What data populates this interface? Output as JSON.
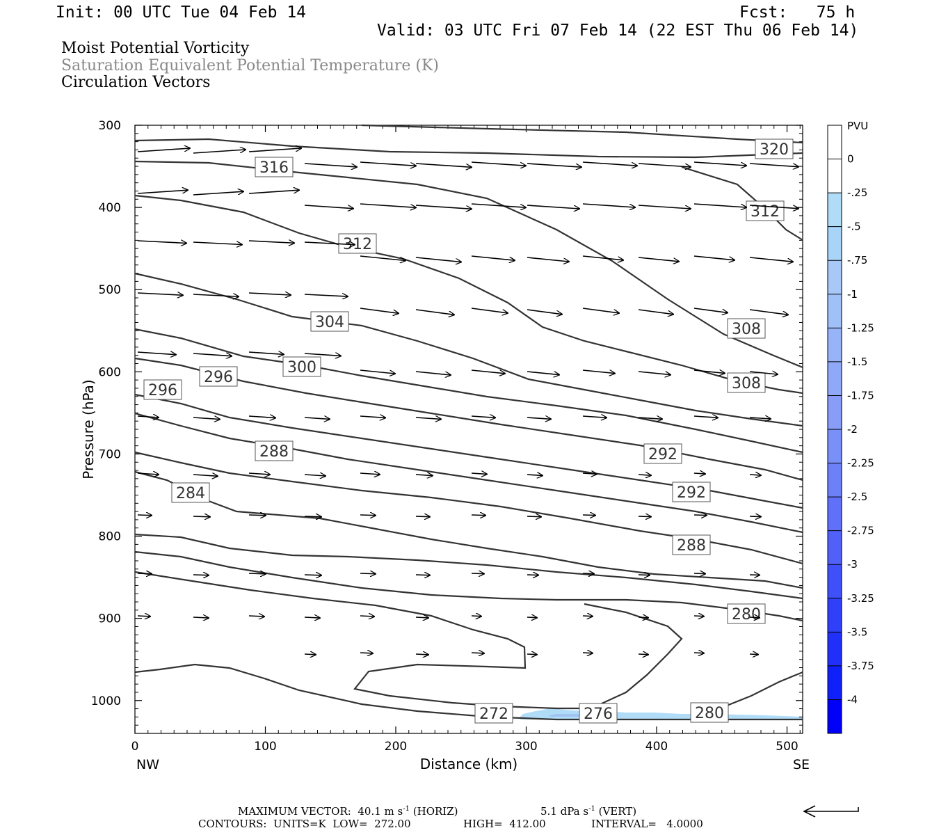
{
  "header": {
    "init": "Init: 00 UTC Tue 04 Feb 14",
    "fcst": "Fcst:   75 h",
    "valid": "Valid: 03 UTC Fri 07 Feb 14 (22 EST Thu 06 Feb 14)",
    "field1": "Moist Potential Vorticity",
    "field2": "Saturation Equivalent Potential Temperature (K)",
    "field3": "Circulation Vectors"
  },
  "colors": {
    "field2_text": "#888888",
    "contour": "#333333",
    "pv_fill": "#b0dcf8"
  },
  "chart_data": {
    "type": "cross-section contour",
    "xlabel": "Distance (km)",
    "ylabel": "Pressure (hPa)",
    "xlim": [
      0,
      512
    ],
    "ylim": [
      1040,
      300
    ],
    "x_ticks": [
      "0",
      "100",
      "200",
      "300",
      "400",
      "500"
    ],
    "y_ticks": [
      "300",
      "400",
      "500",
      "600",
      "700",
      "800",
      "900",
      "1000"
    ],
    "x_end_labels": {
      "left": "NW",
      "right": "SE"
    },
    "contour_units": "K",
    "contour_labels": [
      "320",
      "316",
      "312",
      "312",
      "308",
      "308",
      "304",
      "300",
      "296",
      "296",
      "292",
      "292",
      "288",
      "288",
      "284",
      "280",
      "272",
      "276",
      "280"
    ],
    "colorbar": {
      "title": "PVU",
      "labels": [
        "0",
        "-.25",
        "-.5",
        "-.75",
        "-1",
        "-1.25",
        "-1.5",
        "-1.75",
        "-2",
        "-2.25",
        "-2.5",
        "-2.75",
        "-3",
        "-3.25",
        "-3.5",
        "-3.75",
        "-4"
      ],
      "colors": [
        "#ffffff",
        "#ffffff",
        "#b0dcf8",
        "#a8d4f8",
        "#a8c8f8",
        "#a0c0f8",
        "#98b4f8",
        "#90a8f8",
        "#889cf8",
        "#7890f8",
        "#6c80f8",
        "#6070f8",
        "#5060f8",
        "#4050f8",
        "#3040f8",
        "#2030f8",
        "#1020f8",
        "#0000f8"
      ]
    }
  },
  "footer": {
    "max_vector_label": "MAXIMUM VECTOR:",
    "horiz": "40.1 m s",
    "horiz_unit": "(HORIZ)",
    "vert": "5.1 dPa s",
    "vert_unit": "(VERT)",
    "exp": "-1",
    "contours_label": "CONTOURS:",
    "units": "UNITS=K",
    "low_label": "LOW=",
    "low": "272.00",
    "high_label": "HIGH=",
    "high": "412.00",
    "interval_label": "INTERVAL=",
    "interval": "4.0000"
  }
}
